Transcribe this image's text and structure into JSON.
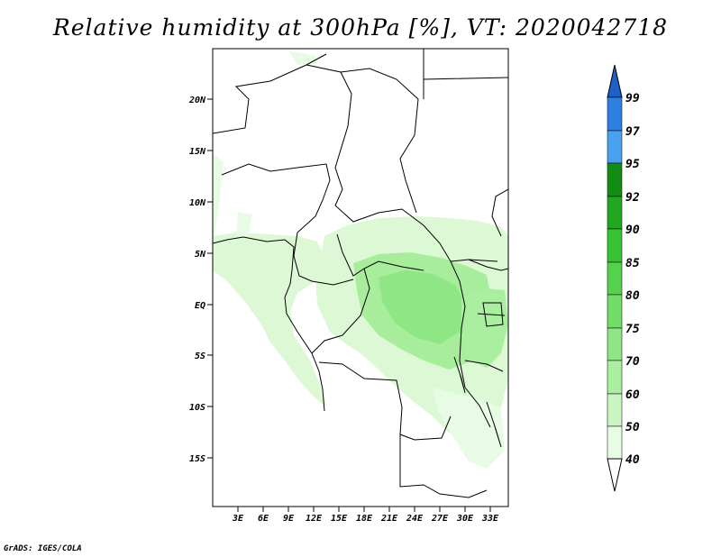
{
  "title": "Relative humidity at 300hPa [%], VT: 2020042718",
  "credit": "GrADS: IGES/COLA",
  "lat_ticks": [
    "20N",
    "15N",
    "10N",
    "5N",
    "EQ",
    "5S",
    "10S",
    "15S"
  ],
  "lon_ticks": [
    "3E",
    "6E",
    "9E",
    "12E",
    "15E",
    "18E",
    "21E",
    "24E",
    "27E",
    "30E",
    "33E"
  ],
  "colorbar": {
    "levels": [
      "40",
      "50",
      "60",
      "70",
      "75",
      "80",
      "85",
      "90",
      "92",
      "95",
      "97",
      "99"
    ],
    "colors": [
      "#ffffff",
      "#e8fbe4",
      "#c9f5c0",
      "#aaeea0",
      "#8ee685",
      "#72de68",
      "#55d24d",
      "#38c234",
      "#22a820",
      "#128c12",
      "#48a2ee",
      "#2d7fe0",
      "#1e60c8"
    ]
  }
}
